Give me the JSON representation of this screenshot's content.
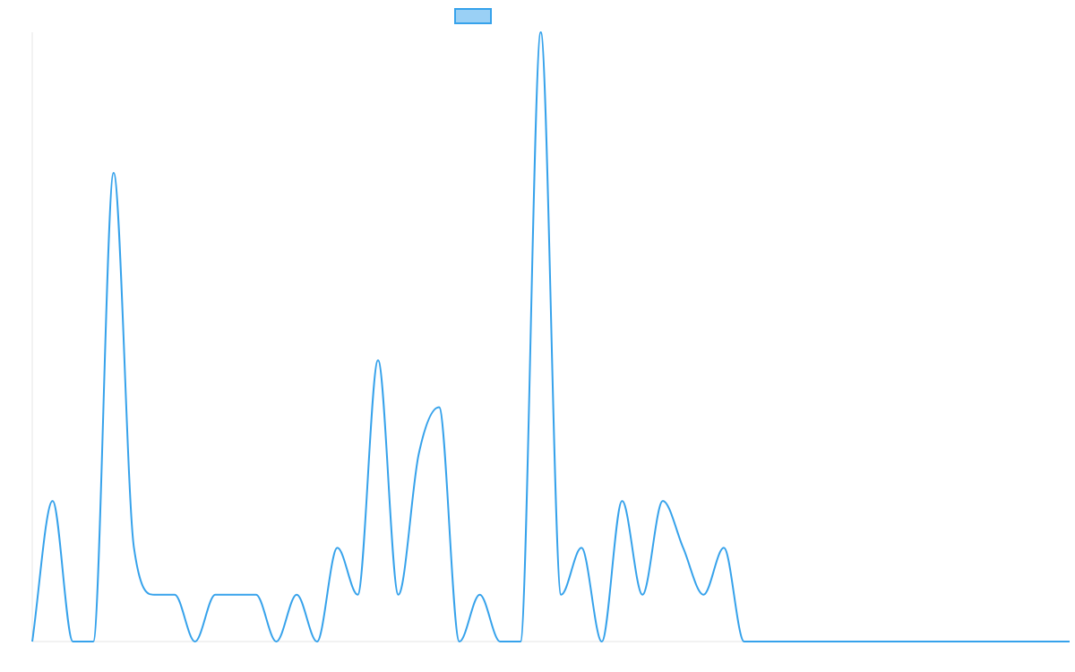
{
  "chart_data": {
    "type": "line",
    "title": "",
    "xlabel": "",
    "ylabel": "",
    "legend": {
      "placement": "top-center",
      "entries": [
        {
          "label": "",
          "color": "#36a2eb"
        }
      ]
    },
    "grid": false,
    "line_color": "#36a2eb",
    "legend_fill": "#9ad0f5",
    "axis_color": "#e5e5e5",
    "ylim": [
      0,
      13
    ],
    "x": [
      0,
      1,
      2,
      3,
      4,
      5,
      6,
      7,
      8,
      9,
      10,
      11,
      12,
      13,
      14,
      15,
      16,
      17,
      18,
      19,
      20,
      21,
      22,
      23,
      24,
      25,
      26,
      27,
      28,
      29,
      30,
      31,
      32,
      33,
      34,
      35,
      36,
      37,
      38,
      39,
      40,
      41,
      42,
      43,
      44,
      45,
      46,
      47,
      48,
      49,
      50,
      51
    ],
    "series": [
      {
        "name": "",
        "values": [
          0,
          3,
          0,
          0,
          10,
          2,
          1,
          1,
          0,
          1,
          1,
          1,
          0,
          1,
          0,
          2,
          1,
          6,
          1,
          4,
          5,
          0,
          1,
          0,
          0,
          13,
          1,
          2,
          0,
          3,
          1,
          3,
          2,
          1,
          2,
          0,
          0,
          0,
          0,
          0,
          0,
          0,
          0,
          0,
          0,
          0,
          0,
          0,
          0,
          0,
          0,
          0
        ]
      }
    ]
  }
}
